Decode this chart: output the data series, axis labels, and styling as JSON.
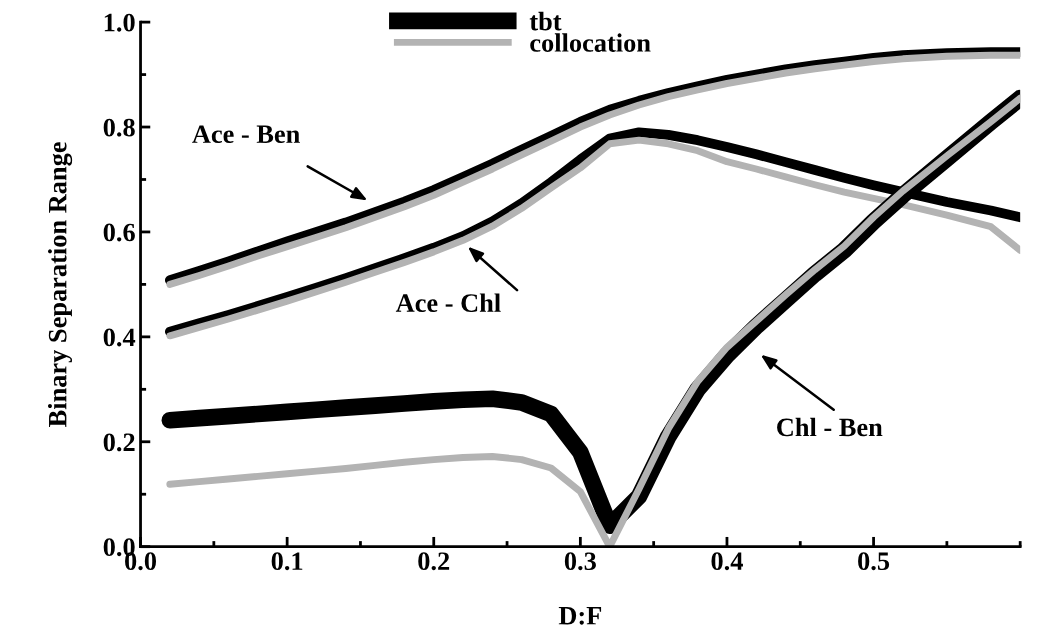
{
  "chart_data": {
    "type": "line",
    "xlabel": "D:F",
    "ylabel": "Binary Separation Range",
    "x": [
      0.02,
      0.04,
      0.06,
      0.08,
      0.1,
      0.12,
      0.14,
      0.16,
      0.18,
      0.2,
      0.22,
      0.24,
      0.26,
      0.28,
      0.3,
      0.32,
      0.34,
      0.36,
      0.38,
      0.4,
      0.42,
      0.44,
      0.46,
      0.48,
      0.5,
      0.52,
      0.55,
      0.58,
      0.6
    ],
    "series": [
      {
        "name": "tbt",
        "color": "#000000",
        "values": [
          0.508,
          0.526,
          0.544,
          0.563,
          0.582,
          0.6,
          0.618,
          0.638,
          0.658,
          0.68,
          0.705,
          0.73,
          0.757,
          0.783,
          0.81,
          0.833,
          0.85,
          0.865,
          0.878,
          0.89,
          0.9,
          0.91,
          0.918,
          0.925,
          0.932,
          0.937,
          0.941,
          0.943,
          0.943
        ]
      },
      {
        "name": "collocation",
        "color": "#b3b3b3",
        "values": [
          0.5,
          0.517,
          0.535,
          0.554,
          0.572,
          0.59,
          0.608,
          0.628,
          0.648,
          0.67,
          0.695,
          0.72,
          0.747,
          0.773,
          0.8,
          0.823,
          0.842,
          0.858,
          0.871,
          0.883,
          0.893,
          0.903,
          0.911,
          0.918,
          0.925,
          0.93,
          0.935,
          0.937,
          0.937
        ]
      },
      {
        "color": "#000000",
        "values": [
          0.41,
          0.426,
          0.442,
          0.459,
          0.476,
          0.494,
          0.512,
          0.531,
          0.55,
          0.57,
          0.592,
          0.62,
          0.655,
          0.695,
          0.738,
          0.778,
          0.79,
          0.785,
          0.775,
          0.762,
          0.748,
          0.733,
          0.718,
          0.703,
          0.689,
          0.676,
          0.657,
          0.641,
          0.628
        ]
      },
      {
        "color": "#b3b3b3",
        "values": [
          0.402,
          0.418,
          0.434,
          0.451,
          0.468,
          0.486,
          0.504,
          0.523,
          0.542,
          0.562,
          0.584,
          0.611,
          0.645,
          0.684,
          0.722,
          0.768,
          0.775,
          0.768,
          0.755,
          0.734,
          0.72,
          0.705,
          0.69,
          0.676,
          0.664,
          0.652,
          0.632,
          0.61,
          0.565
        ]
      },
      {
        "color": "#000000",
        "values": [
          0.241,
          0.245,
          0.249,
          0.253,
          0.257,
          0.261,
          0.265,
          0.269,
          0.273,
          0.277,
          0.28,
          0.282,
          0.275,
          0.253,
          0.18,
          0.04,
          0.096,
          0.21,
          0.3,
          0.365,
          0.42,
          0.47,
          0.52,
          0.565,
          0.62,
          0.67,
          0.74,
          0.81,
          0.855
        ]
      },
      {
        "color": "#b3b3b3",
        "values": [
          0.119,
          0.124,
          0.129,
          0.134,
          0.139,
          0.144,
          0.149,
          0.155,
          0.161,
          0.166,
          0.17,
          0.172,
          0.166,
          0.15,
          0.105,
          0.0,
          0.11,
          0.225,
          0.315,
          0.38,
          0.43,
          0.48,
          0.528,
          0.573,
          0.628,
          0.678,
          0.745,
          0.81,
          0.855
        ]
      }
    ],
    "xlim": [
      0,
      0.6
    ],
    "ylim": [
      0,
      1.0
    ],
    "xticks": [
      {
        "value": 0,
        "label": "0.0"
      },
      0.1,
      0.2,
      0.3,
      0.4,
      0.5
    ],
    "yticks": [
      {
        "value": 0,
        "label": "0.0"
      },
      0.2,
      0.4,
      0.6,
      0.8,
      {
        "value": 1.0,
        "label": "1.0"
      }
    ],
    "annotations": [
      "Ace - Ben",
      "Ace - Chl",
      "Chl - Ben"
    ],
    "legend": "top",
    "grid": false,
    "marker": "none",
    "line_style": "solid"
  }
}
